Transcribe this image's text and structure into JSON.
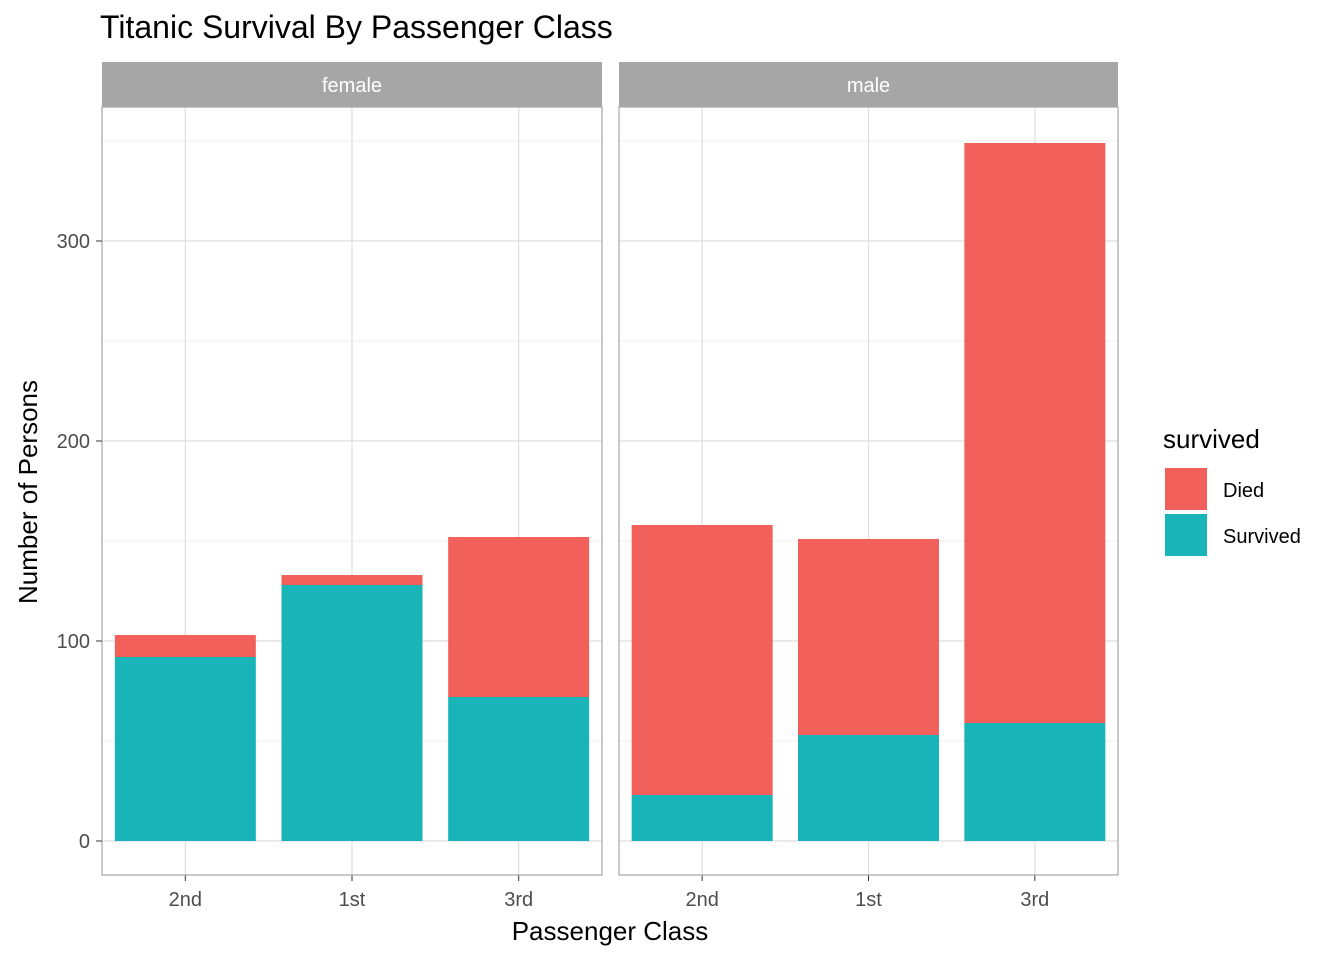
{
  "chart_data": {
    "type": "bar",
    "stacked": true,
    "title": "Titanic Survival By Passenger Class",
    "xlabel": "Passenger Class",
    "ylabel": "Number of Persons",
    "ylim": [
      -17,
      367
    ],
    "yticks": [
      0,
      100,
      200,
      300
    ],
    "categories": [
      "2nd",
      "1st",
      "3rd"
    ],
    "legend": {
      "title": "survived",
      "entries": [
        {
          "name": "Died",
          "color": "#F2605C"
        },
        {
          "name": "Survived",
          "color": "#19B4B8"
        }
      ],
      "position": "right"
    },
    "panels": [
      {
        "label": "female",
        "series": [
          {
            "name": "Survived",
            "values": [
              92,
              128,
              72
            ]
          },
          {
            "name": "Died",
            "values": [
              11,
              5,
              80
            ]
          }
        ]
      },
      {
        "label": "male",
        "series": [
          {
            "name": "Survived",
            "values": [
              23,
              53,
              59
            ]
          },
          {
            "name": "Died",
            "values": [
              135,
              98,
              290
            ]
          }
        ]
      }
    ]
  }
}
